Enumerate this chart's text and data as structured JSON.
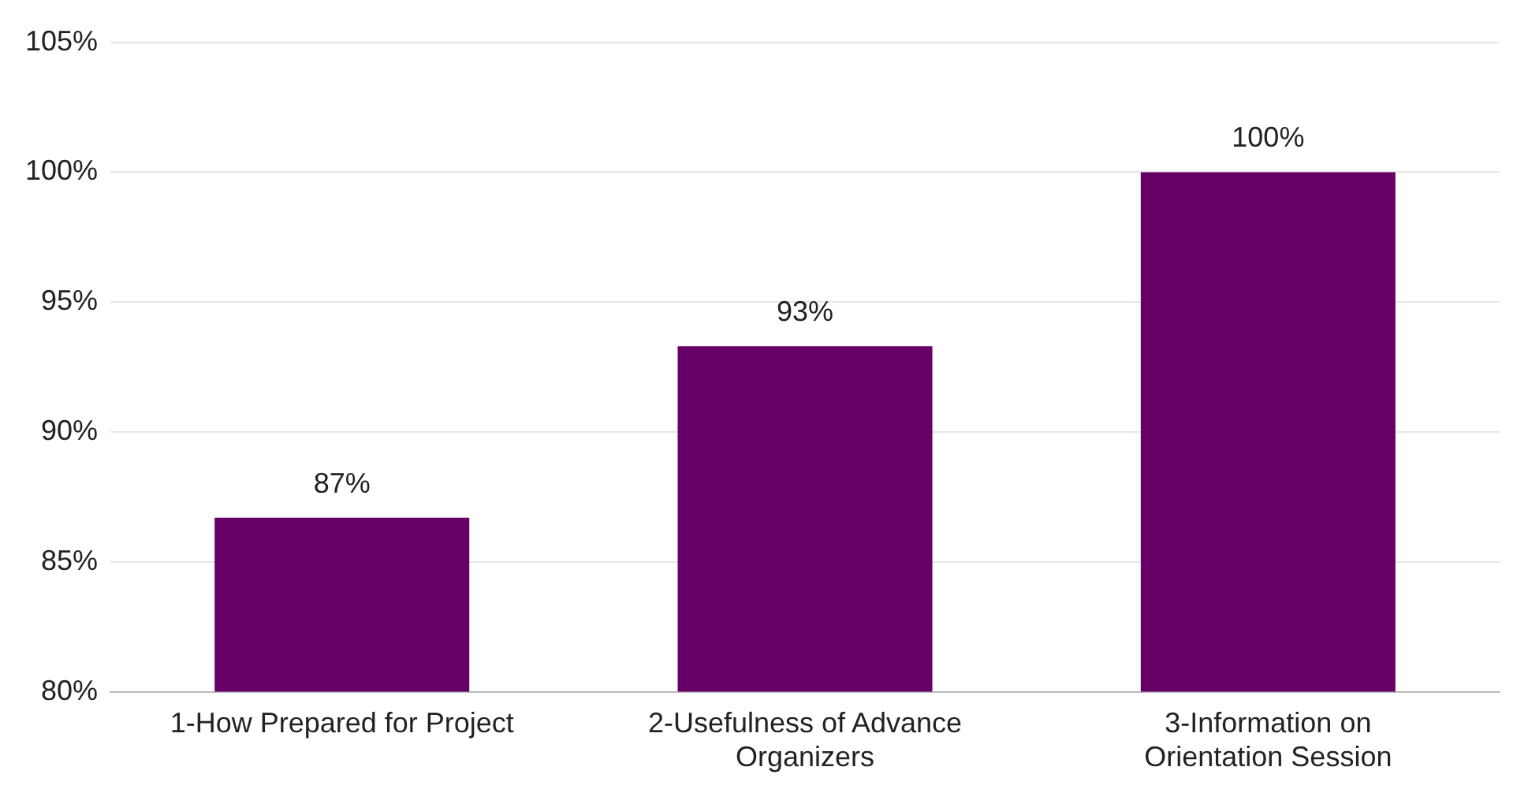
{
  "chart_data": {
    "type": "bar",
    "categories": [
      "1-How Prepared for Project",
      "2-Usefulness of Advance Organizers",
      "3-Information on Orientation Session"
    ],
    "values": [
      86.7,
      93.3,
      100
    ],
    "value_labels": [
      "87%",
      "93%",
      "100%"
    ],
    "color": "#660066",
    "ylim": [
      80,
      105
    ],
    "yticks": [
      {
        "value": 80,
        "label": "80%"
      },
      {
        "value": 85,
        "label": "85%"
      },
      {
        "value": 90,
        "label": "90%"
      },
      {
        "value": 95,
        "label": "95%"
      },
      {
        "value": 100,
        "label": "100%"
      },
      {
        "value": 105,
        "label": "105%"
      }
    ],
    "grid": "y",
    "legend": false
  }
}
